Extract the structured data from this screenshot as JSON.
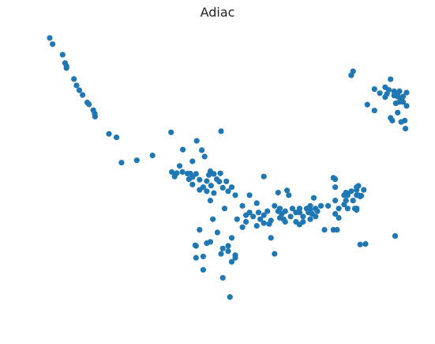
{
  "chart_data": {
    "type": "scatter",
    "title": "Adiac",
    "xlabel": "",
    "ylabel": "",
    "axes_visible": false,
    "grid": false,
    "xlim": [
      0,
      1
    ],
    "ylim": [
      0,
      1
    ],
    "series": [
      {
        "color": "#1f77b4",
        "points": [
          [
            0.0,
            1.0
          ],
          [
            0.008,
            0.977
          ],
          [
            0.036,
            0.937
          ],
          [
            0.043,
            0.906
          ],
          [
            0.047,
            0.894
          ],
          [
            0.047,
            0.887
          ],
          [
            0.068,
            0.846
          ],
          [
            0.075,
            0.822
          ],
          [
            0.083,
            0.804
          ],
          [
            0.092,
            0.786
          ],
          [
            0.105,
            0.758
          ],
          [
            0.11,
            0.751
          ],
          [
            0.122,
            0.729
          ],
          [
            0.126,
            0.716
          ],
          [
            0.127,
            0.705
          ],
          [
            0.166,
            0.64
          ],
          [
            0.187,
            0.627
          ],
          [
            0.201,
            0.532
          ],
          [
            0.244,
            0.541
          ],
          [
            0.288,
            0.559
          ],
          [
            0.34,
            0.646
          ],
          [
            0.373,
            0.581
          ],
          [
            0.412,
            0.614
          ],
          [
            0.48,
            0.65
          ],
          [
            0.426,
            0.579
          ],
          [
            0.434,
            0.555
          ],
          [
            0.4,
            0.537
          ],
          [
            0.364,
            0.52
          ],
          [
            0.342,
            0.497
          ],
          [
            0.356,
            0.493
          ],
          [
            0.372,
            0.497
          ],
          [
            0.386,
            0.491
          ],
          [
            0.394,
            0.491
          ],
          [
            0.41,
            0.49
          ],
          [
            0.4,
            0.478
          ],
          [
            0.35,
            0.48
          ],
          [
            0.39,
            0.47
          ],
          [
            0.42,
            0.468
          ],
          [
            0.446,
            0.486
          ],
          [
            0.46,
            0.49
          ],
          [
            0.478,
            0.492
          ],
          [
            0.44,
            0.463
          ],
          [
            0.475,
            0.461
          ],
          [
            0.495,
            0.462
          ],
          [
            0.452,
            0.446
          ],
          [
            0.485,
            0.438
          ],
          [
            0.468,
            0.47
          ],
          [
            0.4,
            0.45
          ],
          [
            0.43,
            0.44
          ],
          [
            0.5,
            0.425
          ],
          [
            0.51,
            0.44
          ],
          [
            0.44,
            0.425
          ],
          [
            0.46,
            0.418
          ],
          [
            0.42,
            0.43
          ],
          [
            0.58,
            0.38
          ],
          [
            0.56,
            0.41
          ],
          [
            0.61,
            0.35
          ],
          [
            0.63,
            0.37
          ],
          [
            0.54,
            0.37
          ],
          [
            0.52,
            0.41
          ],
          [
            0.41,
            0.22
          ],
          [
            0.5,
            0.22
          ],
          [
            0.45,
            0.235
          ],
          [
            0.42,
            0.28
          ],
          [
            0.51,
            0.25
          ],
          [
            0.47,
            0.27
          ],
          [
            0.55,
            0.31
          ],
          [
            0.57,
            0.33
          ],
          [
            0.54,
            0.29
          ],
          [
            0.5,
            0.2
          ],
          [
            0.48,
            0.19
          ],
          [
            0.43,
            0.13
          ],
          [
            0.41,
            0.175
          ],
          [
            0.52,
            0.175
          ],
          [
            0.485,
            0.21
          ],
          [
            0.44,
            0.23
          ],
          [
            0.55,
            0.335
          ],
          [
            0.59,
            0.32
          ],
          [
            0.6,
            0.335
          ],
          [
            0.62,
            0.315
          ],
          [
            0.585,
            0.345
          ],
          [
            0.58,
            0.295
          ],
          [
            0.56,
            0.345
          ],
          [
            0.525,
            0.32
          ],
          [
            0.6,
            0.305
          ],
          [
            0.615,
            0.302
          ],
          [
            0.6,
            0.48
          ],
          [
            0.62,
            0.25
          ],
          [
            0.665,
            0.428
          ],
          [
            0.67,
            0.41
          ],
          [
            0.66,
            0.35
          ],
          [
            0.68,
            0.36
          ],
          [
            0.69,
            0.345
          ],
          [
            0.7,
            0.345
          ],
          [
            0.71,
            0.33
          ],
          [
            0.64,
            0.35
          ],
          [
            0.645,
            0.325
          ],
          [
            0.655,
            0.32
          ],
          [
            0.65,
            0.34
          ],
          [
            0.675,
            0.33
          ],
          [
            0.7,
            0.36
          ],
          [
            0.725,
            0.36
          ],
          [
            0.66,
            0.31
          ],
          [
            0.725,
            0.345
          ],
          [
            0.78,
            0.37
          ],
          [
            0.745,
            0.33
          ],
          [
            0.71,
            0.31
          ],
          [
            0.73,
            0.32
          ],
          [
            0.7,
            0.3
          ],
          [
            0.76,
            0.37
          ],
          [
            0.72,
            0.36
          ],
          [
            0.745,
            0.36
          ],
          [
            0.735,
            0.34
          ],
          [
            0.645,
            0.36
          ],
          [
            0.69,
            0.31
          ],
          [
            0.73,
            0.355
          ],
          [
            0.81,
            0.36
          ],
          [
            0.835,
            0.36
          ],
          [
            0.855,
            0.36
          ],
          [
            0.825,
            0.375
          ],
          [
            0.86,
            0.355
          ],
          [
            0.8,
            0.34
          ],
          [
            0.81,
            0.325
          ],
          [
            0.8,
            0.44
          ],
          [
            0.75,
            0.35
          ],
          [
            0.73,
            0.37
          ],
          [
            0.8,
            0.39
          ],
          [
            0.77,
            0.28
          ],
          [
            0.795,
            0.28
          ],
          [
            0.805,
            0.28
          ],
          [
            0.83,
            0.39
          ],
          [
            0.85,
            0.39
          ],
          [
            0.86,
            0.44
          ],
          [
            0.86,
            0.43
          ],
          [
            0.835,
            0.41
          ],
          [
            0.83,
            0.42
          ],
          [
            0.86,
            0.41
          ],
          [
            0.873,
            0.408
          ],
          [
            0.86,
            0.36
          ],
          [
            0.87,
            0.405
          ],
          [
            0.88,
            0.43
          ],
          [
            0.845,
            0.425
          ],
          [
            0.865,
            0.445
          ],
          [
            0.825,
            0.41
          ],
          [
            0.8,
            0.47
          ],
          [
            0.795,
            0.475
          ],
          [
            0.865,
            0.41
          ],
          [
            0.86,
            0.36
          ],
          [
            0.64,
            0.42
          ],
          [
            0.74,
            0.4
          ],
          [
            0.87,
            0.225
          ],
          [
            0.885,
            0.227
          ],
          [
            0.968,
            0.257
          ],
          [
            0.63,
            0.19
          ],
          [
            0.51,
            0.16
          ],
          [
            0.485,
            0.1
          ],
          [
            0.52,
            0.185
          ],
          [
            0.43,
            0.18
          ],
          [
            0.408,
            0.222
          ],
          [
            0.505,
            0.028
          ],
          [
            0.457,
            0.32
          ],
          [
            0.45,
            0.5
          ],
          [
            0.45,
            0.39
          ],
          [
            0.49,
            0.36
          ],
          [
            0.845,
            0.86
          ],
          [
            0.85,
            0.875
          ],
          [
            0.89,
            0.75
          ],
          [
            0.91,
            0.728
          ],
          [
            0.925,
            0.793
          ],
          [
            0.94,
            0.778
          ],
          [
            0.94,
            0.815
          ],
          [
            0.95,
            0.805
          ],
          [
            0.965,
            0.784
          ],
          [
            0.975,
            0.78
          ],
          [
            0.98,
            0.8
          ],
          [
            0.975,
            0.785
          ],
          [
            0.985,
            0.77
          ],
          [
            0.97,
            0.755
          ],
          [
            0.98,
            0.76
          ],
          [
            1.0,
            0.745
          ],
          [
            0.955,
            0.7
          ],
          [
            1.0,
            0.795
          ],
          [
            0.955,
            0.845
          ],
          [
            0.91,
            0.808
          ],
          [
            0.945,
            0.79
          ],
          [
            0.965,
            0.8
          ],
          [
            0.99,
            0.76
          ],
          [
            0.99,
            0.78
          ],
          [
            0.975,
            0.72
          ],
          [
            0.997,
            0.66
          ],
          [
            0.985,
            0.685
          ],
          [
            0.96,
            0.69
          ],
          [
            0.995,
            0.69
          ]
        ]
      }
    ]
  }
}
